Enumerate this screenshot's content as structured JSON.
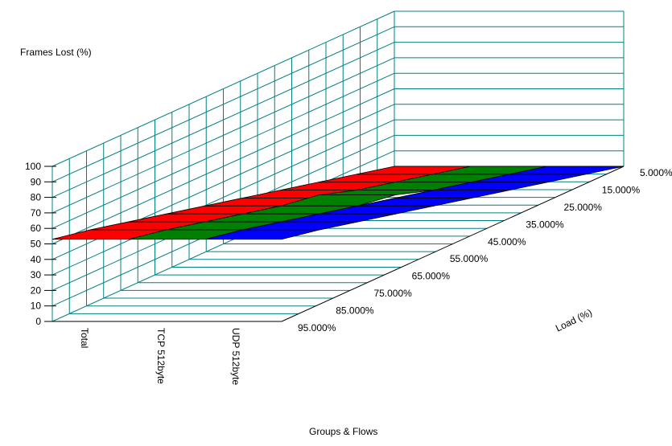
{
  "chart_data": {
    "type": "surface3d",
    "title": "",
    "ylabel": "Frames Lost (%)",
    "xlabel": "Groups & Flows",
    "zlabel": "Load (%)",
    "ylim": [
      0,
      100
    ],
    "yticks": [
      "0",
      "10",
      "20",
      "30",
      "40",
      "50",
      "60",
      "70",
      "80",
      "90",
      "100"
    ],
    "groups": [
      "Total",
      "TCP 512byte",
      "UDP 512byte"
    ],
    "loads": [
      "5.000%",
      "15.000%",
      "25.000%",
      "35.000%",
      "45.000%",
      "55.000%",
      "65.000%",
      "75.000%",
      "85.000%",
      "95.000%"
    ],
    "series": [
      {
        "name": "Total",
        "color": "#ff0000",
        "values": [
          0,
          6,
          12,
          18,
          24,
          30,
          36,
          42,
          48,
          53
        ]
      },
      {
        "name": "TCP 512byte",
        "color": "#008000",
        "values": [
          0,
          6,
          12,
          18,
          26,
          30,
          36,
          42,
          48,
          53
        ]
      },
      {
        "name": "UDP 512byte",
        "color": "#0000ff",
        "values": [
          0,
          6,
          12,
          18,
          24,
          30,
          36,
          42,
          48,
          53
        ]
      }
    ],
    "grid": true,
    "grid_color": "#008080"
  }
}
